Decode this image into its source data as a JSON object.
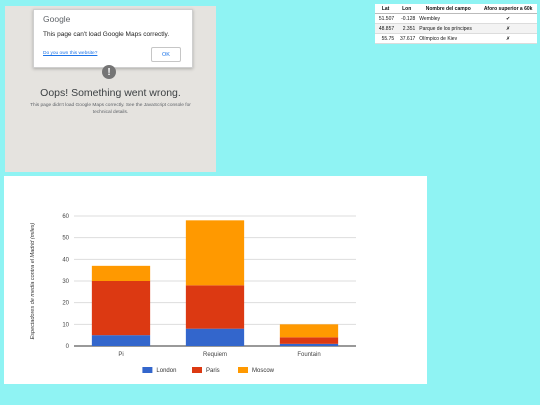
{
  "map_error": {
    "logo": "Google",
    "dialog_message": "This page can't load Google Maps correctly.",
    "own_site_link": "Do you own this website?",
    "ok_button": "OK",
    "warning_icon": "!",
    "heading": "Oops! Something went wrong.",
    "detail": "This page didn't load Google Maps correctly. See the JavaScript console for technical details."
  },
  "stadium_table": {
    "headers": [
      "Lat",
      "Lon",
      "Nombre del campo",
      "Aforo superior a 60k"
    ],
    "rows": [
      {
        "lat": "51.507",
        "lon": "-0.128",
        "name": "Wembley",
        "over_60k": "✔"
      },
      {
        "lat": "48.857",
        "lon": "2.351",
        "name": "Parque de los príncipes",
        "over_60k": "✗"
      },
      {
        "lat": "55.75",
        "lon": "37.617",
        "name": "Olímpico de Kiev",
        "over_60k": "✗"
      }
    ]
  },
  "chart_data": {
    "type": "bar",
    "stacked": true,
    "categories": [
      "Pi",
      "Requiem",
      "Fountain"
    ],
    "series": [
      {
        "name": "London",
        "color": "#3366cc",
        "values": [
          5,
          8,
          1
        ]
      },
      {
        "name": "Paris",
        "color": "#dc3912",
        "values": [
          25,
          20,
          3
        ]
      },
      {
        "name": "Moscow",
        "color": "#ff9900",
        "values": [
          7,
          30,
          6
        ]
      }
    ],
    "ylabel": "Espectadores de media contra el Madrid (miles)",
    "xlabel": "",
    "ylim": [
      0,
      60
    ],
    "yticks": [
      0,
      10,
      20,
      30,
      40,
      50,
      60
    ],
    "grid": true,
    "legend_position": "bottom"
  }
}
